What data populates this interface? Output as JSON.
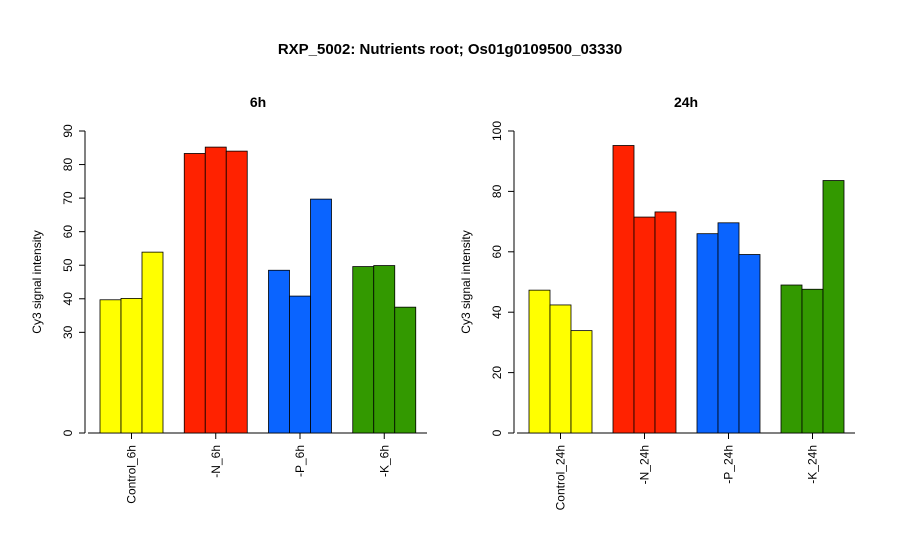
{
  "figure": {
    "title": "RXP_5002: Nutrients root; Os01g0109500_03330"
  },
  "chart_data": [
    {
      "type": "bar",
      "title": "6h",
      "ylabel": "Cy3 signal intensity",
      "ylim": [
        0,
        90
      ],
      "yticks": [
        0,
        30,
        40,
        50,
        60,
        70,
        80,
        90
      ],
      "categories": [
        "Control_6h",
        "-N_6h",
        "-P_6h",
        "-K_6h"
      ],
      "group_colors": [
        "#ffff00",
        "#ff2200",
        "#0a64ff",
        "#339900"
      ],
      "groups": [
        {
          "category": "Control_6h",
          "values": [
            39.7,
            40.1,
            53.9
          ]
        },
        {
          "category": "-N_6h",
          "values": [
            83.3,
            85.2,
            84.0
          ]
        },
        {
          "category": "-P_6h",
          "values": [
            48.5,
            40.8,
            69.7
          ]
        },
        {
          "category": "-K_6h",
          "values": [
            49.6,
            49.9,
            37.5
          ]
        }
      ]
    },
    {
      "type": "bar",
      "title": "24h",
      "ylabel": "Cy3 signal intensity",
      "ylim": [
        0,
        100
      ],
      "yticks": [
        0,
        20,
        40,
        60,
        80,
        100
      ],
      "categories": [
        "Control_24h",
        "-N_24h",
        "-P_24h",
        "-K_24h"
      ],
      "group_colors": [
        "#ffff00",
        "#ff2200",
        "#0a64ff",
        "#339900"
      ],
      "groups": [
        {
          "category": "Control_24h",
          "values": [
            47.3,
            42.4,
            33.9
          ]
        },
        {
          "category": "-N_24h",
          "values": [
            95.2,
            71.5,
            73.2
          ]
        },
        {
          "category": "-P_24h",
          "values": [
            66.0,
            69.6,
            59.1
          ]
        },
        {
          "category": "-K_24h",
          "values": [
            49.0,
            47.6,
            83.6
          ]
        }
      ]
    }
  ]
}
